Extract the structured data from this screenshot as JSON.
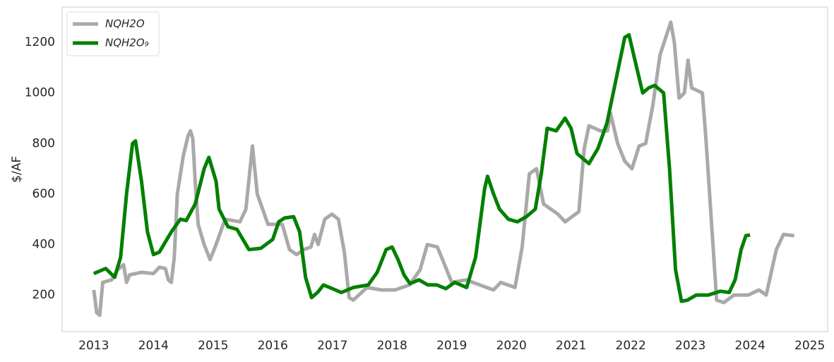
{
  "chart_data": {
    "type": "line",
    "ylabel": "$/AF",
    "xlim": [
      2012.47,
      2025.3
    ],
    "ylim": [
      55,
      1340
    ],
    "xticks": [
      2013,
      2014,
      2015,
      2016,
      2017,
      2018,
      2019,
      2020,
      2021,
      2022,
      2023,
      2024,
      2025
    ],
    "yticks": [
      200,
      400,
      600,
      800,
      1000,
      1200
    ],
    "grid": false,
    "legend": "upper left",
    "series": [
      {
        "name": "NQH2O",
        "color": "#a9a9a9",
        "width": 5,
        "x": [
          2013.0,
          2013.05,
          2013.1,
          2013.15,
          2013.3,
          2013.4,
          2013.5,
          2013.55,
          2013.6,
          2013.8,
          2014.0,
          2014.1,
          2014.2,
          2014.25,
          2014.3,
          2014.35,
          2014.4,
          2014.5,
          2014.58,
          2014.62,
          2014.66,
          2014.7,
          2014.75,
          2014.85,
          2014.95,
          2015.05,
          2015.2,
          2015.45,
          2015.55,
          2015.66,
          2015.74,
          2015.92,
          2016.16,
          2016.28,
          2016.4,
          2016.52,
          2016.64,
          2016.7,
          2016.76,
          2016.87,
          2016.99,
          2017.1,
          2017.2,
          2017.28,
          2017.35,
          2017.58,
          2017.82,
          2018.05,
          2018.29,
          2018.47,
          2018.59,
          2018.76,
          2018.88,
          2019.0,
          2019.24,
          2019.47,
          2019.7,
          2019.82,
          2020.06,
          2020.18,
          2020.3,
          2020.42,
          2020.54,
          2020.78,
          2020.9,
          2021.13,
          2021.22,
          2021.3,
          2021.49,
          2021.61,
          2021.66,
          2021.78,
          2021.9,
          2022.02,
          2022.14,
          2022.25,
          2022.37,
          2022.49,
          2022.67,
          2022.73,
          2022.81,
          2022.9,
          2022.96,
          2023.02,
          2023.2,
          2023.26,
          2023.35,
          2023.44,
          2023.56,
          2023.73,
          2023.97,
          2024.15,
          2024.27,
          2024.44,
          2024.56,
          2024.74
        ],
        "values": [
          220,
          130,
          120,
          250,
          260,
          300,
          320,
          250,
          280,
          290,
          285,
          310,
          305,
          260,
          250,
          350,
          600,
          750,
          830,
          850,
          820,
          650,
          480,
          400,
          340,
          400,
          500,
          490,
          540,
          790,
          600,
          480,
          480,
          380,
          360,
          380,
          390,
          440,
          400,
          500,
          520,
          500,
          370,
          190,
          180,
          230,
          220,
          220,
          240,
          300,
          400,
          390,
          320,
          250,
          260,
          240,
          220,
          250,
          230,
          390,
          680,
          700,
          560,
          520,
          490,
          530,
          780,
          870,
          850,
          850,
          920,
          800,
          730,
          700,
          790,
          800,
          950,
          1150,
          1280,
          1200,
          980,
          1000,
          1130,
          1020,
          1000,
          820,
          500,
          180,
          170,
          200,
          200,
          220,
          200,
          380,
          440,
          435
        ]
      },
      {
        "name": "NQH2O₉",
        "color": "#008000",
        "width": 5,
        "x": [
          2013.0,
          2013.2,
          2013.35,
          2013.45,
          2013.55,
          2013.65,
          2013.7,
          2013.8,
          2013.9,
          2014.0,
          2014.1,
          2014.3,
          2014.45,
          2014.55,
          2014.7,
          2014.85,
          2014.93,
          2015.05,
          2015.1,
          2015.25,
          2015.4,
          2015.5,
          2015.6,
          2015.8,
          2016.0,
          2016.1,
          2016.2,
          2016.35,
          2016.45,
          2016.55,
          2016.65,
          2016.75,
          2016.85,
          2017.0,
          2017.15,
          2017.35,
          2017.6,
          2017.75,
          2017.9,
          2018.0,
          2018.1,
          2018.2,
          2018.3,
          2018.45,
          2018.6,
          2018.75,
          2018.9,
          2019.05,
          2019.15,
          2019.25,
          2019.4,
          2019.55,
          2019.6,
          2019.7,
          2019.8,
          2019.95,
          2020.1,
          2020.25,
          2020.4,
          2020.5,
          2020.6,
          2020.75,
          2020.9,
          2021.0,
          2021.1,
          2021.3,
          2021.45,
          2021.6,
          2021.75,
          2021.9,
          2021.97,
          2022.1,
          2022.2,
          2022.3,
          2022.4,
          2022.55,
          2022.65,
          2022.75,
          2022.85,
          2022.95,
          2023.1,
          2023.3,
          2023.5,
          2023.65,
          2023.75,
          2023.85,
          2023.93,
          2024.0
        ],
        "values": [
          285,
          305,
          270,
          350,
          600,
          800,
          810,
          650,
          450,
          360,
          370,
          450,
          500,
          495,
          560,
          700,
          745,
          650,
          540,
          470,
          460,
          420,
          380,
          385,
          420,
          490,
          505,
          510,
          450,
          270,
          190,
          210,
          240,
          225,
          210,
          230,
          240,
          290,
          380,
          390,
          340,
          280,
          245,
          260,
          240,
          240,
          225,
          250,
          240,
          230,
          350,
          620,
          670,
          600,
          540,
          500,
          490,
          510,
          540,
          680,
          860,
          850,
          900,
          860,
          760,
          720,
          780,
          880,
          1050,
          1220,
          1230,
          1100,
          1000,
          1020,
          1030,
          1000,
          700,
          300,
          175,
          180,
          200,
          200,
          215,
          210,
          260,
          380,
          435,
          438
        ]
      }
    ]
  }
}
